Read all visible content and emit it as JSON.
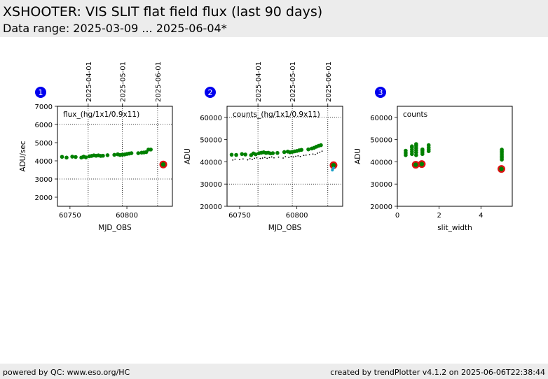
{
  "header": {
    "title": "XSHOOTER: VIS SLIT flat field flux (last 90 days)",
    "subtitle": "Data range: 2025-03-09 ... 2025-06-04*"
  },
  "footer": {
    "left": "powered by QC: www.eso.org/HC",
    "right": "created by trendPlotter v4.1.2 on 2025-06-06T22:38:44"
  },
  "colors": {
    "points": "#008000",
    "reference": "#dd1111",
    "secondary": "#000000",
    "badge": "#0000ee",
    "cyan": "#1aa0c8"
  },
  "chart_data": [
    {
      "type": "scatter",
      "badge": "1",
      "annotation": "flux_(hg/1x1/0.9x11)",
      "xlabel": "MJD_OBS",
      "ylabel": "ADU/sec",
      "xlim": [
        60739,
        60840
      ],
      "ylim": [
        1500,
        7000
      ],
      "xticks": [
        60750,
        60800
      ],
      "yticks": [
        2000,
        3000,
        4000,
        5000,
        6000,
        7000
      ],
      "hlines": [
        3000,
        6000
      ],
      "date_ticks": [
        {
          "x": 60766,
          "label": "2025-04-01"
        },
        {
          "x": 60796,
          "label": "2025-05-01"
        },
        {
          "x": 60827,
          "label": "2025-06-01"
        }
      ],
      "series": [
        {
          "role": "main",
          "x": [
            60743,
            60747,
            60752,
            60755,
            60760,
            60762,
            60764,
            60767,
            60769,
            60771,
            60773,
            60775,
            60777,
            60779,
            60783,
            60789,
            60792,
            60794,
            60796,
            60798,
            60800,
            60802,
            60804,
            60810,
            60813,
            60815,
            60817,
            60819,
            60821
          ],
          "y": [
            4220,
            4180,
            4230,
            4210,
            4180,
            4230,
            4190,
            4250,
            4270,
            4300,
            4280,
            4300,
            4270,
            4280,
            4310,
            4330,
            4360,
            4320,
            4340,
            4350,
            4380,
            4400,
            4420,
            4420,
            4450,
            4460,
            4480,
            4620,
            4620
          ]
        },
        {
          "role": "reference",
          "x": [
            60832
          ],
          "y": [
            3800
          ]
        }
      ]
    },
    {
      "type": "scatter",
      "badge": "2",
      "annotation": "counts_(hg/1x1/0.9x11)",
      "xlabel": "MJD_OBS",
      "ylabel": "ADU",
      "xlim": [
        60739,
        60840
      ],
      "ylim": [
        20000,
        65000
      ],
      "xticks": [
        60750,
        60800
      ],
      "yticks": [
        20000,
        30000,
        40000,
        50000,
        60000
      ],
      "hlines": [
        30000,
        60000
      ],
      "date_ticks": [
        {
          "x": 60766,
          "label": "2025-04-01"
        },
        {
          "x": 60796,
          "label": "2025-05-01"
        },
        {
          "x": 60827,
          "label": "2025-06-01"
        }
      ],
      "series": [
        {
          "role": "main",
          "x": [
            60743,
            60747,
            60752,
            60755,
            60760,
            60762,
            60764,
            60767,
            60769,
            60771,
            60773,
            60775,
            60777,
            60779,
            60783,
            60789,
            60792,
            60794,
            60796,
            60798,
            60800,
            60802,
            60804,
            60810,
            60813,
            60815,
            60817,
            60819,
            60821
          ],
          "y": [
            43200,
            43100,
            43500,
            43300,
            43000,
            43800,
            43400,
            43900,
            44100,
            44300,
            44000,
            44100,
            43800,
            43900,
            44000,
            44400,
            44600,
            44300,
            44500,
            44700,
            44900,
            45200,
            45400,
            45600,
            46000,
            46300,
            46800,
            47200,
            47500
          ]
        },
        {
          "role": "secondary",
          "x": [
            60744,
            60746,
            60750,
            60753,
            60757,
            60759,
            60761,
            60763,
            60765,
            60768,
            60770,
            60772,
            60774,
            60776,
            60778,
            60780,
            60784,
            60788,
            60790,
            60793,
            60795,
            60797,
            60799,
            60801,
            60803,
            60806,
            60808,
            60811,
            60814,
            60816,
            60818,
            60820,
            60822
          ],
          "y": [
            40800,
            41200,
            41000,
            41300,
            40900,
            41400,
            41100,
            41600,
            41800,
            41500,
            41700,
            42000,
            41600,
            41900,
            42200,
            41800,
            42100,
            41700,
            42300,
            42000,
            42400,
            42200,
            42500,
            42700,
            42400,
            42900,
            43000,
            43200,
            43500,
            43300,
            43900,
            44300,
            44800
          ]
        },
        {
          "role": "reference",
          "x": [
            60832
          ],
          "y": [
            38500
          ]
        },
        {
          "role": "cyan",
          "x": [
            60832,
            60831
          ],
          "y": [
            37200,
            36300
          ]
        }
      ]
    },
    {
      "type": "scatter",
      "badge": "3",
      "annotation": "counts",
      "xlabel": "slit_width",
      "ylabel": "ADU",
      "xlim": [
        0,
        5.5
      ],
      "ylim": [
        20000,
        65000
      ],
      "xticks": [
        0,
        2,
        4
      ],
      "yticks": [
        20000,
        30000,
        40000,
        50000,
        60000
      ],
      "hlines": [],
      "date_ticks": [],
      "series": [
        {
          "role": "main",
          "x": [
            0.4,
            0.4,
            0.4,
            0.7,
            0.7,
            0.7,
            0.7,
            0.7,
            0.9,
            0.9,
            0.9,
            0.9,
            0.9,
            0.9,
            1.2,
            1.2,
            1.2,
            1.2,
            1.5,
            1.5,
            1.5,
            1.5,
            5.0,
            5.0,
            5.0,
            5.0,
            5.0,
            5.0,
            5.0,
            5.0
          ],
          "y": [
            43000,
            44000,
            45000,
            43500,
            44500,
            45500,
            46500,
            47000,
            43000,
            44200,
            45200,
            46200,
            47200,
            48000,
            43500,
            44300,
            45000,
            45600,
            44800,
            45600,
            46500,
            47500,
            41000,
            41800,
            42500,
            43200,
            44000,
            44800,
            45500,
            37000
          ]
        },
        {
          "role": "reference",
          "x": [
            0.88,
            1.17,
            4.98
          ],
          "y": [
            38700,
            39000,
            36800
          ]
        }
      ]
    }
  ]
}
